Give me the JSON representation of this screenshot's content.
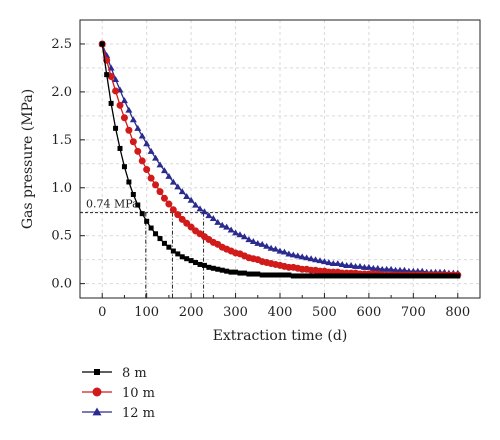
{
  "chart_data": {
    "type": "line",
    "xlabel": "Extraction time (d)",
    "ylabel": "Gas pressure (MPa)",
    "xlim": [
      -50,
      850
    ],
    "ylim": [
      -0.15,
      2.75
    ],
    "x_ticks": [
      0,
      100,
      200,
      300,
      400,
      500,
      600,
      700,
      800
    ],
    "y_ticks": [
      0.0,
      0.5,
      1.0,
      1.5,
      2.0,
      2.5
    ],
    "y_tick_labels": [
      "0.0",
      "0.5",
      "1.0",
      "1.5",
      "2.0",
      "2.5"
    ],
    "grid": true,
    "legend_position": "below-left",
    "series": [
      {
        "name": "8 m",
        "color": "#000000",
        "marker": "square",
        "x": [
          0,
          10,
          20,
          30,
          40,
          50,
          60,
          70,
          80,
          90,
          100,
          110,
          120,
          130,
          140,
          150,
          160,
          170,
          180,
          190,
          200,
          210,
          220,
          230,
          240,
          250,
          260,
          270,
          280,
          290,
          300,
          310,
          320,
          330,
          340,
          350,
          360,
          370,
          380,
          390,
          400,
          410,
          420,
          430,
          440,
          450,
          460,
          470,
          480,
          490,
          500,
          510,
          520,
          530,
          540,
          550,
          560,
          570,
          580,
          590,
          600,
          610,
          620,
          630,
          640,
          650,
          660,
          670,
          680,
          690,
          700,
          710,
          720,
          730,
          740,
          750,
          760,
          770,
          780,
          790,
          800
        ],
        "y": [
          2.5,
          2.18,
          1.88,
          1.62,
          1.41,
          1.22,
          1.06,
          0.93,
          0.82,
          0.73,
          0.65,
          0.58,
          0.52,
          0.47,
          0.42,
          0.38,
          0.34,
          0.31,
          0.28,
          0.26,
          0.24,
          0.22,
          0.2,
          0.19,
          0.17,
          0.16,
          0.15,
          0.14,
          0.13,
          0.12,
          0.12,
          0.11,
          0.11,
          0.1,
          0.1,
          0.1,
          0.09,
          0.09,
          0.09,
          0.09,
          0.09,
          0.09,
          0.09,
          0.08,
          0.08,
          0.08,
          0.08,
          0.08,
          0.08,
          0.08,
          0.08,
          0.08,
          0.08,
          0.08,
          0.08,
          0.08,
          0.08,
          0.08,
          0.08,
          0.08,
          0.08,
          0.08,
          0.08,
          0.08,
          0.08,
          0.08,
          0.08,
          0.08,
          0.08,
          0.08,
          0.08,
          0.08,
          0.08,
          0.08,
          0.08,
          0.08,
          0.08,
          0.08,
          0.08,
          0.08,
          0.08
        ]
      },
      {
        "name": "10 m",
        "color": "#d11a1a",
        "marker": "circle",
        "x": [
          0,
          10,
          20,
          30,
          40,
          50,
          60,
          70,
          80,
          90,
          100,
          110,
          120,
          130,
          140,
          150,
          160,
          170,
          180,
          190,
          200,
          210,
          220,
          230,
          240,
          250,
          260,
          270,
          280,
          290,
          300,
          310,
          320,
          330,
          340,
          350,
          360,
          370,
          380,
          390,
          400,
          410,
          420,
          430,
          440,
          450,
          460,
          470,
          480,
          490,
          500,
          510,
          520,
          530,
          540,
          550,
          560,
          570,
          580,
          590,
          600,
          610,
          620,
          630,
          640,
          650,
          660,
          670,
          680,
          690,
          700,
          710,
          720,
          730,
          740,
          750,
          760,
          770,
          780,
          790,
          800
        ],
        "y": [
          2.5,
          2.33,
          2.16,
          2.01,
          1.86,
          1.73,
          1.6,
          1.48,
          1.38,
          1.28,
          1.19,
          1.1,
          1.03,
          0.96,
          0.89,
          0.83,
          0.77,
          0.72,
          0.67,
          0.63,
          0.59,
          0.55,
          0.52,
          0.49,
          0.46,
          0.43,
          0.41,
          0.38,
          0.36,
          0.34,
          0.32,
          0.31,
          0.29,
          0.27,
          0.26,
          0.25,
          0.23,
          0.22,
          0.21,
          0.2,
          0.19,
          0.18,
          0.17,
          0.17,
          0.16,
          0.15,
          0.15,
          0.14,
          0.14,
          0.13,
          0.13,
          0.12,
          0.12,
          0.12,
          0.11,
          0.11,
          0.11,
          0.11,
          0.1,
          0.1,
          0.1,
          0.1,
          0.1,
          0.09,
          0.09,
          0.09,
          0.09,
          0.09,
          0.09,
          0.09,
          0.09,
          0.09,
          0.09,
          0.09,
          0.09,
          0.09,
          0.09,
          0.09,
          0.09,
          0.09,
          0.09
        ]
      },
      {
        "name": "12 m",
        "color": "#2b2b8f",
        "marker": "triangle",
        "x": [
          0,
          10,
          20,
          30,
          40,
          50,
          60,
          70,
          80,
          90,
          100,
          110,
          120,
          130,
          140,
          150,
          160,
          170,
          180,
          190,
          200,
          210,
          220,
          230,
          240,
          250,
          260,
          270,
          280,
          290,
          300,
          310,
          320,
          330,
          340,
          350,
          360,
          370,
          380,
          390,
          400,
          410,
          420,
          430,
          440,
          450,
          460,
          470,
          480,
          490,
          500,
          510,
          520,
          530,
          540,
          550,
          560,
          570,
          580,
          590,
          600,
          610,
          620,
          630,
          640,
          650,
          660,
          670,
          680,
          690,
          700,
          710,
          720,
          730,
          740,
          750,
          760,
          770,
          780,
          790,
          800
        ],
        "y": [
          2.5,
          2.38,
          2.25,
          2.13,
          2.02,
          1.91,
          1.81,
          1.71,
          1.62,
          1.54,
          1.46,
          1.38,
          1.31,
          1.24,
          1.18,
          1.12,
          1.06,
          1.01,
          0.96,
          0.91,
          0.87,
          0.82,
          0.78,
          0.75,
          0.71,
          0.68,
          0.64,
          0.61,
          0.59,
          0.56,
          0.53,
          0.51,
          0.49,
          0.46,
          0.44,
          0.42,
          0.41,
          0.39,
          0.37,
          0.36,
          0.34,
          0.33,
          0.31,
          0.3,
          0.29,
          0.28,
          0.27,
          0.26,
          0.25,
          0.24,
          0.23,
          0.22,
          0.21,
          0.21,
          0.2,
          0.19,
          0.19,
          0.18,
          0.18,
          0.17,
          0.17,
          0.16,
          0.16,
          0.15,
          0.15,
          0.15,
          0.14,
          0.14,
          0.14,
          0.13,
          0.13,
          0.13,
          0.13,
          0.12,
          0.12,
          0.12,
          0.12,
          0.12,
          0.11,
          0.11,
          0.11
        ]
      }
    ],
    "annotations": {
      "threshold_label": "0.74 MPa",
      "threshold_value": 0.74,
      "drop_times": [
        98,
        158,
        228
      ]
    }
  }
}
